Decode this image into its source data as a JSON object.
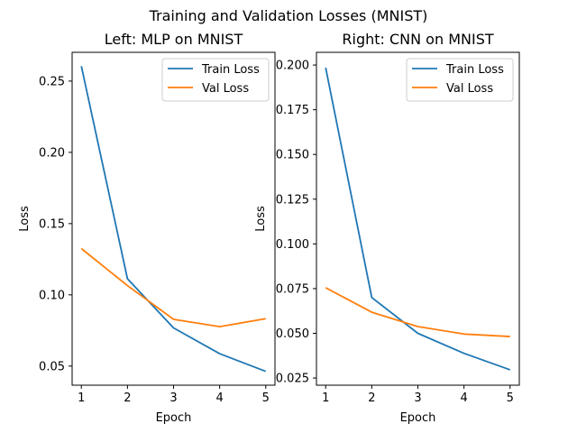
{
  "figure": {
    "suptitle": "Training and Validation Losses (MNIST)"
  },
  "colors": {
    "train": "#1f77b4",
    "val": "#ff7f0e",
    "frame": "#000000",
    "background": "#ffffff",
    "legend_border": "#cccccc"
  },
  "chart_data": [
    {
      "type": "line",
      "title": "Left: MLP on MNIST",
      "xlabel": "Epoch",
      "ylabel": "Loss",
      "x": [
        1,
        2,
        3,
        4,
        5
      ],
      "xticks": [
        "1",
        "2",
        "3",
        "4",
        "5"
      ],
      "yticks": [
        "0.05",
        "0.10",
        "0.15",
        "0.20",
        "0.25"
      ],
      "ytick_values": [
        0.05,
        0.1,
        0.15,
        0.2,
        0.25
      ],
      "xlim": [
        0.8,
        5.2
      ],
      "ylim": [
        0.0366,
        0.2702
      ],
      "grid": false,
      "legend_position": "upper right",
      "series": [
        {
          "name": "Train Loss",
          "values": [
            0.2605,
            0.1113,
            0.0768,
            0.0587,
            0.0463
          ]
        },
        {
          "name": "Val Loss",
          "values": [
            0.1325,
            0.1065,
            0.0828,
            0.0777,
            0.0833
          ]
        }
      ]
    },
    {
      "type": "line",
      "title": "Right: CNN on MNIST",
      "xlabel": "Epoch",
      "ylabel": "Loss",
      "x": [
        1,
        2,
        3,
        4,
        5
      ],
      "xticks": [
        "1",
        "2",
        "3",
        "4",
        "5"
      ],
      "yticks": [
        "0.025",
        "0.050",
        "0.075",
        "0.100",
        "0.125",
        "0.150",
        "0.175",
        "0.200"
      ],
      "ytick_values": [
        0.025,
        0.05,
        0.075,
        0.1,
        0.125,
        0.15,
        0.175,
        0.2
      ],
      "xlim": [
        0.8,
        5.2
      ],
      "ylim": [
        0.021,
        0.2071
      ],
      "grid": false,
      "legend_position": "upper right",
      "series": [
        {
          "name": "Train Loss",
          "values": [
            0.1985,
            0.07,
            0.05,
            0.0388,
            0.0296
          ]
        },
        {
          "name": "Val Loss",
          "values": [
            0.0755,
            0.0618,
            0.0538,
            0.0496,
            0.0482
          ]
        }
      ]
    }
  ]
}
